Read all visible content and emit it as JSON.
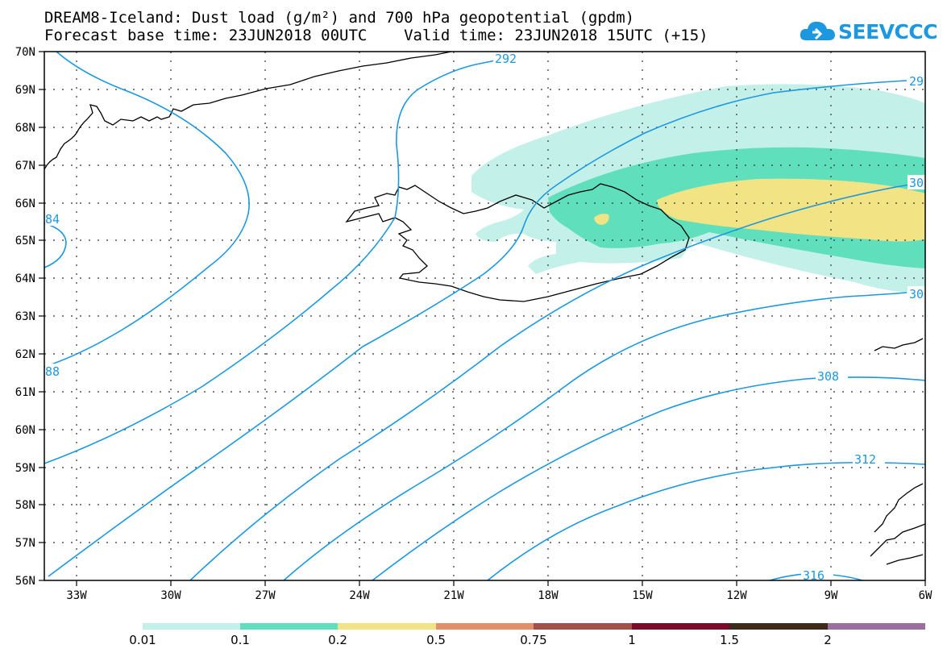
{
  "header": {
    "title_line1": "DREAM8-Iceland: Dust load (g/m²) and 700 hPa geopotential (gpdm)",
    "title_line2": "Forecast base time: 23JUN2018 00UTC    Valid time: 23JUN2018 15UTC (+15)"
  },
  "logo": {
    "text": "SEEVCCC",
    "color": "#1b98e0",
    "icon": "cloud-icon"
  },
  "map": {
    "lat_labels": [
      "70N",
      "69N",
      "68N",
      "67N",
      "66N",
      "65N",
      "64N",
      "63N",
      "62N",
      "61N",
      "60N",
      "59N",
      "58N",
      "57N",
      "56N"
    ],
    "lon_labels": [
      "33W",
      "30W",
      "27W",
      "24W",
      "21W",
      "18W",
      "15W",
      "12W",
      "9W",
      "6W"
    ],
    "contour_labels": [
      "292",
      "29",
      "30",
      "30",
      "308",
      "312",
      "316",
      "84",
      "88"
    ],
    "contour_color": "#1b98e0",
    "dust_colors": [
      "#c4f0ea",
      "#5fdfbc",
      "#f2e384"
    ]
  },
  "colorbar": {
    "colors": [
      "#c4f0ea",
      "#5fdfbc",
      "#f2e384",
      "#e38f6a",
      "#a3504b",
      "#7b0a2a",
      "#3d2a1a",
      "#9a6fa0"
    ],
    "labels": [
      "0.01",
      "0.1",
      "0.2",
      "0.5",
      "0.75",
      "1",
      "1.5",
      "2"
    ]
  }
}
